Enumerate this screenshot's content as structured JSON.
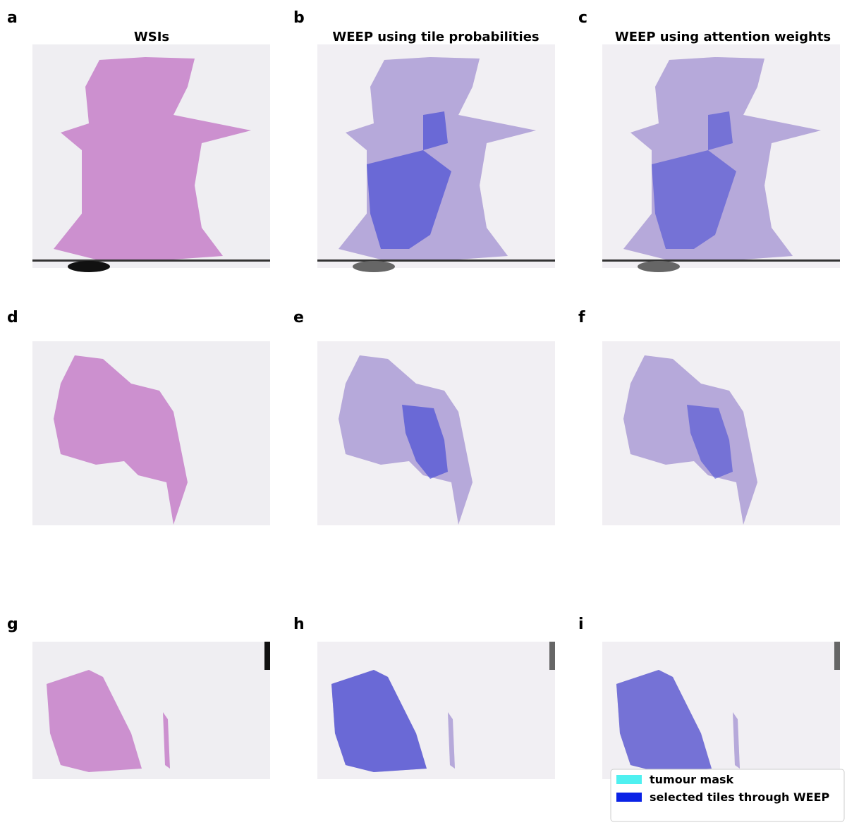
{
  "panels": [
    "a",
    "b",
    "c",
    "d",
    "e",
    "f",
    "g",
    "h",
    "i"
  ],
  "column_titles": [
    "WSIs",
    "WEEP using tile probabilities",
    "WEEP using attention weights"
  ],
  "legend": [
    "tumour mask",
    "selected tiles through WEEP"
  ]
}
